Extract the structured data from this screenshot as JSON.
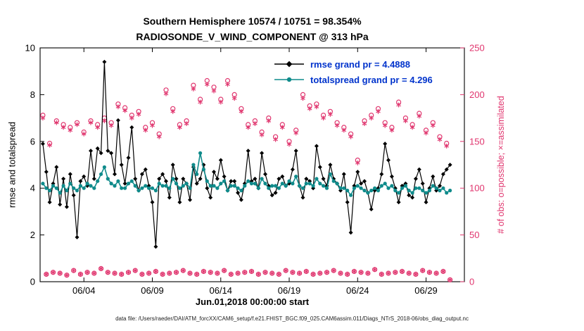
{
  "figure": {
    "title_line1": "Southern Hemisphere 10574 / 10751 = 98.354%",
    "title_line2": "RADIOSONDE_V_WIND_COMPONENT @ 313 hPa",
    "xlabel": "Jun.01,2018 00:00:00 start",
    "ylabel_left": "rmse and totalspread",
    "ylabel_right": "# of obs: o=possible; ×=assimilated",
    "caption": "data file: /Users/raeder/DAI/ATM_forcXX/CAM6_setup/f.e21.FHIST_BGC.f09_025.CAM6assim.011/Diags_NTrS_2018-06/obs_diag_output.nc",
    "colors": {
      "rmse": "#000000",
      "totalspread": "#0f8b8b",
      "obs": "#e0356e",
      "legend_text": "#0033cc",
      "axis": "#000000"
    }
  },
  "legend": {
    "rmse_label": "rmse grand pr = 4.4888",
    "totalspread_label": "totalspread grand pr = 4.296"
  },
  "chart_data": {
    "type": "line",
    "title": "Southern Hemisphere 10574 / 10751 = 98.354% | RADIOSONDE_V_WIND_COMPONENT @ 313 hPa",
    "stats": {
      "possible_total": 10751,
      "assimilated_total": 10574,
      "assimilated_percent": 98.354,
      "rmse_grand_mean": 4.4888,
      "totalspread_grand_mean": 4.296
    },
    "x_start_day": 1.0,
    "x_step_days": 0.25,
    "x_axis": {
      "label": "Jun.01,2018 00:00:00 start",
      "range_days": [
        0.8,
        31.8
      ],
      "tick_days": [
        4,
        9,
        14,
        19,
        24,
        29
      ],
      "tick_labels": [
        "06/04",
        "06/09",
        "06/14",
        "06/19",
        "06/24",
        "06/29"
      ]
    },
    "y_left": {
      "label": "rmse and totalspread",
      "range": [
        0,
        10
      ],
      "ticks": [
        0,
        2,
        4,
        6,
        8,
        10
      ],
      "color": "#000000"
    },
    "y_right": {
      "label": "# of obs: o=possible; ×=assimilated",
      "range": [
        0,
        250
      ],
      "ticks": [
        0,
        50,
        100,
        150,
        200,
        250
      ],
      "color": "#e0356e"
    },
    "grid": false,
    "legend_position": "top-right-inside",
    "series": [
      {
        "name": "rmse",
        "axis": "left",
        "color": "#000000",
        "marker": "diamond",
        "grand_mean": 4.4888,
        "values": [
          5.9,
          4.7,
          3.4,
          4.2,
          4.9,
          3.3,
          4.4,
          3.2,
          4.6,
          3.7,
          1.9,
          4.3,
          4.5,
          4.1,
          5.6,
          4.4,
          5.7,
          5.5,
          9.4,
          5.6,
          5.5,
          4.6,
          6.9,
          5.0,
          4.2,
          5.3,
          6.6,
          4.4,
          3.9,
          4.6,
          4.8,
          4.1,
          3.4,
          1.5,
          4.4,
          4.6,
          4.3,
          3.6,
          5.0,
          4.4,
          3.4,
          4.4,
          4.2,
          3.5,
          4.9,
          4.2,
          4.4,
          5.0,
          4.0,
          3.6,
          4.7,
          4.4,
          5.2,
          4.5,
          3.9,
          4.3,
          4.3,
          3.8,
          3.5,
          4.2,
          5.6,
          4.3,
          4.4,
          4.0,
          5.5,
          4.6,
          4.1,
          3.7,
          3.8,
          4.4,
          4.5,
          4.1,
          4.2,
          4.8,
          5.6,
          4.1,
          3.6,
          4.4,
          4.3,
          4.0,
          5.8,
          4.9,
          4.4,
          4.1,
          5.0,
          4.4,
          4.2,
          3.9,
          4.6,
          3.4,
          2.1,
          4.1,
          4.7,
          4.2,
          4.3,
          3.8,
          3.1,
          3.9,
          4.0,
          4.6,
          5.9,
          5.2,
          4.5,
          4.0,
          3.4,
          4.1,
          4.2,
          3.7,
          3.6,
          4.4,
          4.8,
          4.2,
          3.4,
          4.0,
          4.5,
          3.9,
          4.1,
          4.6,
          4.8,
          5.0
        ]
      },
      {
        "name": "totalspread",
        "axis": "left",
        "color": "#0f8b8b",
        "marker": "circle",
        "grand_mean": 4.296,
        "values": [
          4.2,
          4.0,
          3.9,
          4.1,
          4.0,
          3.8,
          4.1,
          3.9,
          4.2,
          4.0,
          3.9,
          4.1,
          4.0,
          4.2,
          4.1,
          4.0,
          4.3,
          4.6,
          4.9,
          4.4,
          4.2,
          4.1,
          4.3,
          4.0,
          4.0,
          4.2,
          4.3,
          4.1,
          3.9,
          4.0,
          4.1,
          4.0,
          4.0,
          3.9,
          4.2,
          4.1,
          4.1,
          4.0,
          4.4,
          4.2,
          4.0,
          4.1,
          4.2,
          4.0,
          5.0,
          4.6,
          5.5,
          4.8,
          4.3,
          4.1,
          4.1,
          4.0,
          4.2,
          4.3,
          3.9,
          4.1,
          4.1,
          4.0,
          3.9,
          4.1,
          4.3,
          4.2,
          4.2,
          4.0,
          4.4,
          4.2,
          4.0,
          4.1,
          4.1,
          4.0,
          4.2,
          4.1,
          4.3,
          4.2,
          4.5,
          4.1,
          4.0,
          4.2,
          4.2,
          4.1,
          4.4,
          4.2,
          4.1,
          4.0,
          4.6,
          4.3,
          4.2,
          4.0,
          4.0,
          3.9,
          3.7,
          4.0,
          4.1,
          4.0,
          3.9,
          3.8,
          3.9,
          4.0,
          3.9,
          4.1,
          4.2,
          4.0,
          4.1,
          3.9,
          3.8,
          4.0,
          4.1,
          3.9,
          3.8,
          4.0,
          4.0,
          3.9,
          3.8,
          3.9,
          4.1,
          4.0,
          3.9,
          4.0,
          3.8,
          3.9
        ]
      },
      {
        "name": "N_possible",
        "axis": "right",
        "color": "#e0356e",
        "marker": "open-circle",
        "values": [
          178,
          8,
          148,
          10,
          172,
          9,
          168,
          7,
          165,
          12,
          170,
          8,
          160,
          10,
          172,
          9,
          168,
          14,
          175,
          10,
          170,
          9,
          190,
          8,
          186,
          10,
          178,
          12,
          182,
          8,
          165,
          9,
          170,
          11,
          158,
          8,
          205,
          9,
          185,
          10,
          168,
          12,
          172,
          9,
          210,
          8,
          195,
          11,
          215,
          10,
          208,
          9,
          195,
          12,
          215,
          8,
          200,
          9,
          185,
          10,
          168,
          11,
          172,
          8,
          160,
          10,
          175,
          9,
          155,
          8,
          168,
          12,
          150,
          10,
          162,
          9,
          200,
          11,
          188,
          8,
          190,
          9,
          178,
          10,
          182,
          12,
          170,
          9,
          165,
          8,
          158,
          11,
          130,
          10,
          172,
          9,
          178,
          13,
          185,
          8,
          170,
          9,
          165,
          10,
          192,
          11,
          175,
          9,
          168,
          8,
          180,
          12,
          162,
          10,
          170,
          9,
          155,
          11,
          148,
          2
        ]
      },
      {
        "name": "N_assimilated",
        "axis": "right",
        "color": "#e0356e",
        "marker": "asterisk",
        "values": [
          175,
          8,
          146,
          10,
          170,
          9,
          165,
          7,
          162,
          12,
          168,
          8,
          158,
          10,
          170,
          9,
          165,
          14,
          172,
          10,
          167,
          9,
          187,
          8,
          183,
          10,
          175,
          12,
          179,
          8,
          162,
          9,
          167,
          11,
          155,
          8,
          201,
          9,
          182,
          10,
          165,
          12,
          169,
          9,
          206,
          8,
          192,
          11,
          211,
          10,
          204,
          9,
          192,
          12,
          211,
          8,
          196,
          9,
          182,
          10,
          165,
          11,
          169,
          8,
          157,
          10,
          172,
          9,
          152,
          8,
          165,
          12,
          147,
          10,
          159,
          9,
          196,
          11,
          185,
          8,
          187,
          9,
          175,
          10,
          179,
          12,
          167,
          9,
          162,
          8,
          155,
          11,
          127,
          10,
          169,
          9,
          175,
          13,
          182,
          8,
          167,
          9,
          162,
          10,
          189,
          11,
          172,
          9,
          165,
          8,
          177,
          12,
          159,
          10,
          167,
          9,
          152,
          11,
          145,
          2
        ]
      }
    ]
  }
}
